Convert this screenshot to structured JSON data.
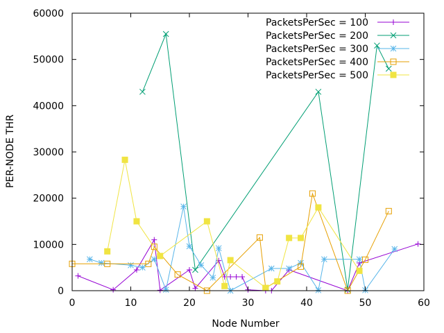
{
  "chart_data": {
    "type": "line",
    "title": "",
    "xlabel": "Node Number",
    "ylabel": "PER-NODE THR",
    "xlim": [
      0,
      60
    ],
    "ylim": [
      0,
      60000
    ],
    "xticks": [
      0,
      10,
      20,
      30,
      40,
      50,
      60
    ],
    "yticks": [
      0,
      10000,
      20000,
      30000,
      40000,
      50000,
      60000
    ],
    "grid": false,
    "legend_position": "top-right",
    "series": [
      {
        "name": "PacketsPerSec = 100",
        "color": "#9400d3",
        "marker": "plus",
        "points": [
          [
            1,
            3200
          ],
          [
            7,
            200
          ],
          [
            11,
            4500
          ],
          [
            14,
            11000
          ],
          [
            15,
            100
          ],
          [
            20,
            4500
          ],
          [
            21,
            500
          ],
          [
            25,
            6500
          ],
          [
            26,
            3000
          ],
          [
            27,
            3000
          ],
          [
            28,
            3000
          ],
          [
            29,
            3000
          ],
          [
            30,
            200
          ],
          [
            33,
            0
          ],
          [
            34,
            0
          ],
          [
            37,
            4500
          ],
          [
            47,
            0
          ],
          [
            49,
            6000
          ],
          [
            59,
            10100
          ]
        ]
      },
      {
        "name": "PacketsPerSec = 200",
        "color": "#009e73",
        "marker": "x",
        "points": [
          [
            12,
            43000
          ],
          [
            16,
            55500
          ],
          [
            21,
            4500
          ],
          [
            42,
            43000
          ],
          [
            47,
            200
          ],
          [
            52,
            53000
          ],
          [
            54,
            48000
          ]
        ]
      },
      {
        "name": "PacketsPerSec = 300",
        "color": "#56b4e9",
        "marker": "star",
        "points": [
          [
            3,
            6800
          ],
          [
            5,
            6000
          ],
          [
            10,
            5500
          ],
          [
            12,
            5000
          ],
          [
            14,
            6800
          ],
          [
            16,
            200
          ],
          [
            19,
            18200
          ],
          [
            20,
            9600
          ],
          [
            22,
            5500
          ],
          [
            24,
            2800
          ],
          [
            25,
            9200
          ],
          [
            27,
            0
          ],
          [
            34,
            4800
          ],
          [
            37,
            4800
          ],
          [
            39,
            6000
          ],
          [
            42,
            100
          ],
          [
            43,
            6800
          ],
          [
            49,
            6800
          ],
          [
            50,
            100
          ],
          [
            55,
            9000
          ]
        ]
      },
      {
        "name": "PacketsPerSec = 400",
        "color": "#e69f00",
        "marker": "square",
        "points": [
          [
            0,
            5800
          ],
          [
            6,
            5800
          ],
          [
            13,
            5800
          ],
          [
            14,
            9500
          ],
          [
            18,
            3500
          ],
          [
            23,
            0
          ],
          [
            32,
            11500
          ],
          [
            33,
            600
          ],
          [
            39,
            5200
          ],
          [
            41,
            21000
          ],
          [
            47,
            0
          ],
          [
            50,
            6700
          ],
          [
            54,
            17200
          ]
        ]
      },
      {
        "name": "PacketsPerSec = 500",
        "color": "#f0e442",
        "marker": "filled-square",
        "points": [
          [
            6,
            8500
          ],
          [
            9,
            28300
          ],
          [
            11,
            15000
          ],
          [
            15,
            7500
          ],
          [
            23,
            15000
          ],
          [
            26,
            1000
          ],
          [
            27,
            6600
          ],
          [
            33,
            600
          ],
          [
            35,
            2000
          ],
          [
            37,
            11400
          ],
          [
            39,
            11400
          ],
          [
            42,
            18000
          ],
          [
            49,
            4300
          ]
        ]
      }
    ]
  }
}
